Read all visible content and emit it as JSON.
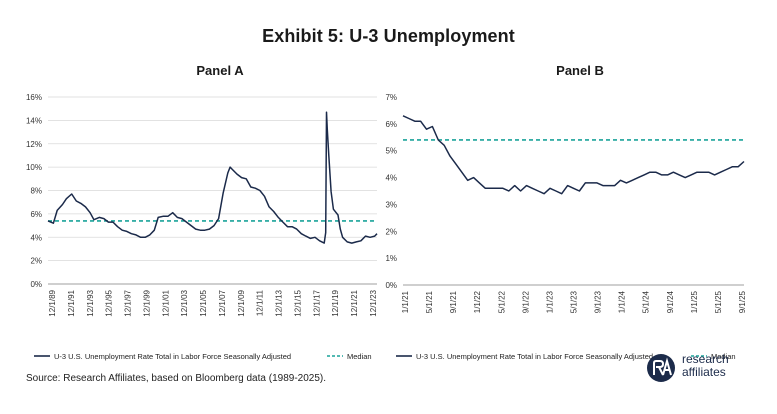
{
  "title": "Exhibit 5: U-3 Unemployment",
  "source": "Source: Research Affiliates, based on Bloomberg data (1989-2025).",
  "logo": {
    "line1": "research",
    "line2": "affiliates",
    "mark": "RA"
  },
  "colors": {
    "series": "#1b2a4a",
    "median": "#1aa39a",
    "grid": "#d9d9d9",
    "axis": "#7f7f7f"
  },
  "chart_data": [
    {
      "type": "line",
      "title": "Panel A",
      "ylim": [
        0,
        16
      ],
      "yticks": [
        0,
        2,
        4,
        6,
        8,
        10,
        12,
        14,
        16
      ],
      "ytick_labels": [
        "0%",
        "2%",
        "4%",
        "6%",
        "8%",
        "10%",
        "12%",
        "14%",
        "16%"
      ],
      "xlim": [
        1989.917,
        2025.75
      ],
      "xtick_labels": [
        "12/1/89",
        "12/1/91",
        "12/1/93",
        "12/1/95",
        "12/1/97",
        "12/1/99",
        "12/1/01",
        "12/1/03",
        "12/1/05",
        "12/1/07",
        "12/1/09",
        "12/1/11",
        "12/1/13",
        "12/1/15",
        "12/1/17",
        "12/1/19",
        "12/1/21",
        "12/1/23"
      ],
      "grid": true,
      "legend_position": "bottom",
      "series": [
        {
          "name": "U-3 U.S. Unemployment Rate Total in Labor Force Seasonally Adjusted",
          "x": [
            1989.917,
            1990.5,
            1990.917,
            1991.5,
            1991.917,
            1992.5,
            1993.0,
            1993.5,
            1994.0,
            1994.5,
            1994.917,
            1995.5,
            1996.0,
            1996.5,
            1997.0,
            1997.5,
            1998.0,
            1998.5,
            1999.0,
            1999.5,
            2000.0,
            2000.5,
            2001.0,
            2001.5,
            2001.917,
            2002.5,
            2003.0,
            2003.5,
            2004.0,
            2004.5,
            2005.0,
            2005.5,
            2006.0,
            2006.5,
            2007.0,
            2007.5,
            2008.0,
            2008.5,
            2009.0,
            2009.5,
            2009.75,
            2010.0,
            2010.5,
            2011.0,
            2011.5,
            2012.0,
            2012.5,
            2013.0,
            2013.5,
            2014.0,
            2014.5,
            2015.0,
            2015.5,
            2016.0,
            2016.5,
            2017.0,
            2017.5,
            2018.0,
            2018.5,
            2019.0,
            2019.5,
            2020.0,
            2020.167,
            2020.25,
            2020.333,
            2020.5,
            2020.75,
            2021.0,
            2021.5,
            2021.75,
            2022.0,
            2022.5,
            2023.0,
            2023.5,
            2024.0,
            2024.5,
            2025.0,
            2025.5,
            2025.75
          ],
          "values": [
            5.4,
            5.2,
            6.3,
            6.8,
            7.3,
            7.7,
            7.1,
            6.9,
            6.6,
            6.1,
            5.5,
            5.7,
            5.6,
            5.3,
            5.3,
            4.9,
            4.6,
            4.5,
            4.3,
            4.2,
            4.0,
            4.0,
            4.2,
            4.6,
            5.7,
            5.8,
            5.8,
            6.1,
            5.7,
            5.6,
            5.3,
            5.0,
            4.7,
            4.6,
            4.6,
            4.7,
            5.0,
            5.6,
            7.8,
            9.5,
            10.0,
            9.8,
            9.4,
            9.1,
            9.0,
            8.3,
            8.2,
            8.0,
            7.5,
            6.6,
            6.2,
            5.7,
            5.3,
            4.9,
            4.9,
            4.7,
            4.3,
            4.1,
            3.9,
            4.0,
            3.7,
            3.5,
            4.4,
            14.7,
            13.2,
            11.0,
            7.9,
            6.4,
            5.9,
            4.7,
            4.0,
            3.6,
            3.5,
            3.6,
            3.7,
            4.1,
            4.0,
            4.1,
            4.3
          ]
        },
        {
          "name": "Median",
          "value": 5.4
        }
      ]
    },
    {
      "type": "line",
      "title": "Panel B",
      "ylim": [
        0,
        7
      ],
      "yticks": [
        0,
        1,
        2,
        3,
        4,
        5,
        6,
        7
      ],
      "ytick_labels": [
        "0%",
        "1%",
        "2%",
        "3%",
        "4%",
        "5%",
        "6%",
        "7%"
      ],
      "xlim": [
        0,
        56
      ],
      "xtick_labels": [
        "1/1/21",
        "5/1/21",
        "9/1/21",
        "1/1/22",
        "5/1/22",
        "9/1/22",
        "1/1/23",
        "5/1/23",
        "9/1/23",
        "1/1/24",
        "5/1/24",
        "9/1/24",
        "1/1/25",
        "5/1/25",
        "9/1/25"
      ],
      "grid": false,
      "legend_position": "bottom",
      "series": [
        {
          "name": "U-3 U.S. Unemployment Rate Total in Labor Force Seasonally Adjusted",
          "values": [
            6.3,
            6.2,
            6.1,
            6.1,
            5.8,
            5.9,
            5.4,
            5.2,
            4.8,
            4.5,
            4.2,
            3.9,
            4.0,
            3.8,
            3.6,
            3.6,
            3.6,
            3.6,
            3.5,
            3.7,
            3.5,
            3.7,
            3.6,
            3.5,
            3.4,
            3.6,
            3.5,
            3.4,
            3.7,
            3.6,
            3.5,
            3.8,
            3.8,
            3.8,
            3.7,
            3.7,
            3.7,
            3.9,
            3.8,
            3.9,
            4.0,
            4.1,
            4.2,
            4.2,
            4.1,
            4.1,
            4.2,
            4.1,
            4.0,
            4.1,
            4.2,
            4.2,
            4.2,
            4.1,
            4.2,
            4.3,
            4.4,
            4.4,
            4.6
          ]
        },
        {
          "name": "Median",
          "value": 5.4
        }
      ]
    }
  ]
}
